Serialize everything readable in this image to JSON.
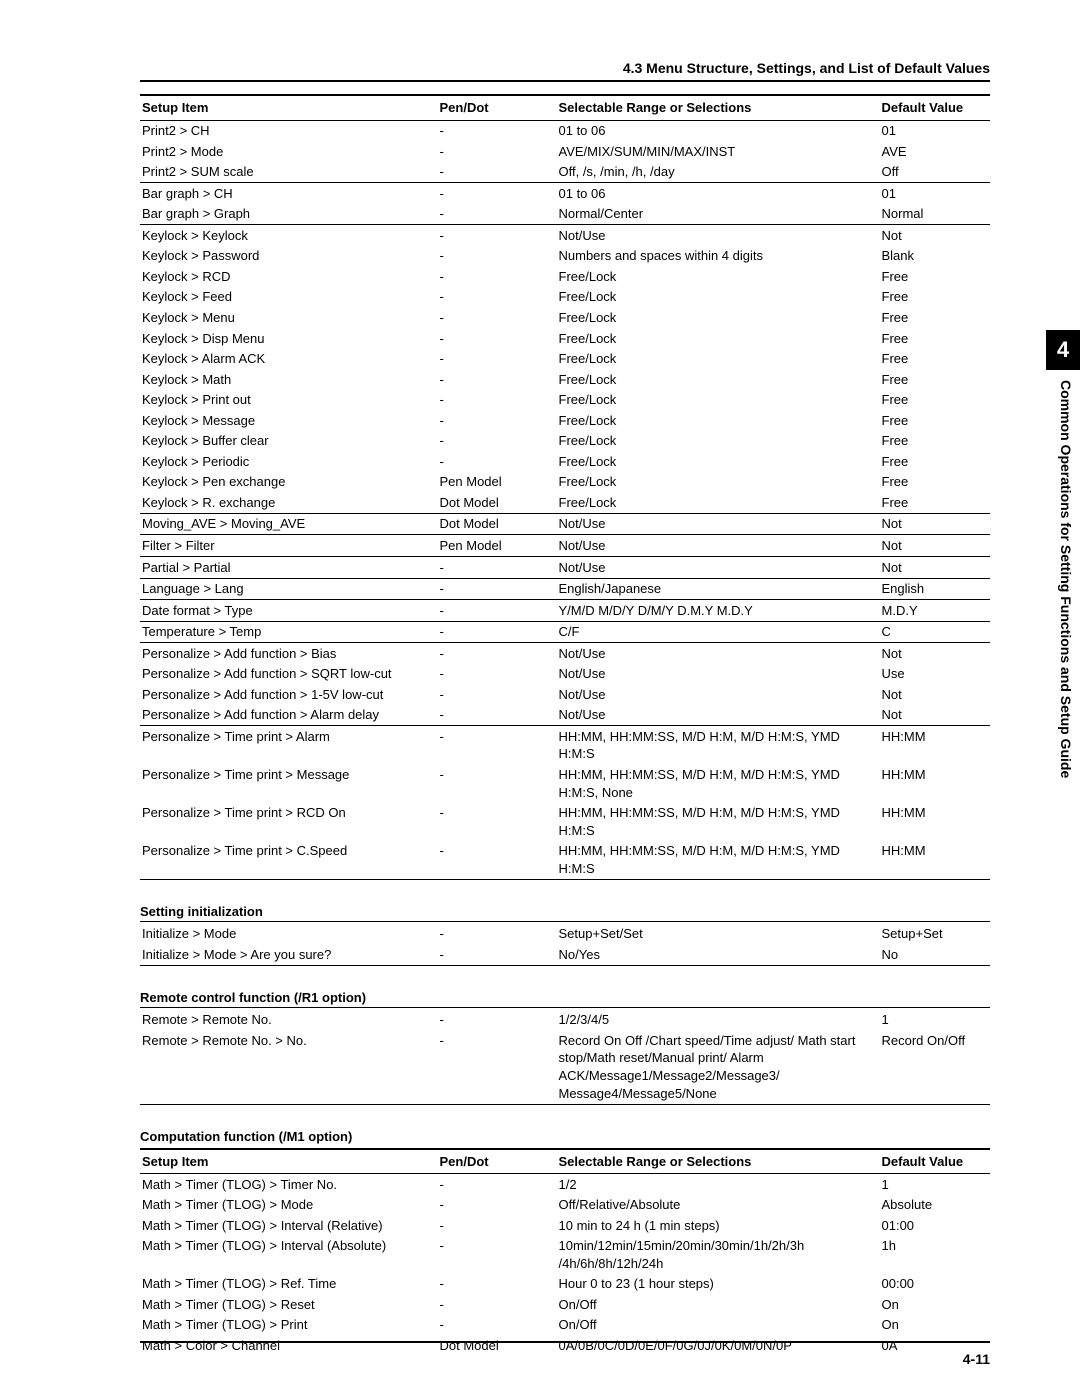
{
  "header_title": "4.3  Menu Structure, Settings, and List of Default Values",
  "chapter_tab": "4",
  "side_label": "Common Operations for Setting Functions and Setup Guide",
  "page_number": "4-11",
  "main_columns": {
    "setup": "Setup Item",
    "pendot": "Pen/Dot",
    "range": "Selectable Range or Selections",
    "default": "Default Value"
  },
  "groups": [
    {
      "rows": [
        {
          "s": "Print2 > CH",
          "p": "-",
          "r": "01 to 06",
          "d": "01"
        },
        {
          "s": "Print2 > Mode",
          "p": "-",
          "r": "AVE/MIX/SUM/MIN/MAX/INST",
          "d": "AVE"
        },
        {
          "s": "Print2 > SUM scale",
          "p": "-",
          "r": "Off, /s, /min, /h, /day",
          "d": "Off"
        }
      ]
    },
    {
      "rows": [
        {
          "s": "Bar graph > CH",
          "p": "-",
          "r": "01 to 06",
          "d": "01"
        },
        {
          "s": "Bar graph > Graph",
          "p": "-",
          "r": "Normal/Center",
          "d": "Normal"
        }
      ]
    },
    {
      "rows": [
        {
          "s": "Keylock > Keylock",
          "p": "-",
          "r": "Not/Use",
          "d": "Not"
        },
        {
          "s": "Keylock > Password",
          "p": "-",
          "r": "Numbers and spaces within 4 digits",
          "d": "Blank"
        },
        {
          "s": "Keylock > RCD",
          "p": "-",
          "r": "Free/Lock",
          "d": "Free"
        },
        {
          "s": "Keylock > Feed",
          "p": "-",
          "r": "Free/Lock",
          "d": "Free"
        },
        {
          "s": "Keylock > Menu",
          "p": "-",
          "r": "Free/Lock",
          "d": "Free"
        },
        {
          "s": "Keylock > Disp Menu",
          "p": "-",
          "r": "Free/Lock",
          "d": "Free"
        },
        {
          "s": "Keylock > Alarm ACK",
          "p": "-",
          "r": "Free/Lock",
          "d": "Free"
        },
        {
          "s": "Keylock > Math",
          "p": "-",
          "r": "Free/Lock",
          "d": "Free"
        },
        {
          "s": "Keylock > Print out",
          "p": "-",
          "r": "Free/Lock",
          "d": "Free"
        },
        {
          "s": "Keylock > Message",
          "p": "-",
          "r": "Free/Lock",
          "d": "Free"
        },
        {
          "s": "Keylock > Buffer clear",
          "p": "-",
          "r": "Free/Lock",
          "d": "Free"
        },
        {
          "s": "Keylock > Periodic",
          "p": "-",
          "r": "Free/Lock",
          "d": "Free"
        },
        {
          "s": "Keylock > Pen exchange",
          "p": "Pen Model",
          "r": "Free/Lock",
          "d": "Free"
        },
        {
          "s": "Keylock > R. exchange",
          "p": "Dot Model",
          "r": "Free/Lock",
          "d": "Free"
        }
      ]
    },
    {
      "rows": [
        {
          "s": "Moving_AVE > Moving_AVE",
          "p": "Dot Model",
          "r": "Not/Use",
          "d": "Not"
        }
      ]
    },
    {
      "rows": [
        {
          "s": "Filter > Filter",
          "p": "Pen Model",
          "r": "Not/Use",
          "d": "Not"
        }
      ]
    },
    {
      "rows": [
        {
          "s": "Partial > Partial",
          "p": "-",
          "r": "Not/Use",
          "d": "Not"
        }
      ]
    },
    {
      "rows": [
        {
          "s": "Language > Lang",
          "p": "-",
          "r": "English/Japanese",
          "d": "English"
        }
      ]
    },
    {
      "rows": [
        {
          "s": "Date format > Type",
          "p": "-",
          "r": "Y/M/D  M/D/Y  D/M/Y  D.M.Y  M.D.Y",
          "d": "M.D.Y"
        }
      ]
    },
    {
      "rows": [
        {
          "s": "Temperature > Temp",
          "p": "-",
          "r": "C/F",
          "d": "C"
        }
      ]
    },
    {
      "rows": [
        {
          "s": "Personalize > Add function > Bias",
          "p": "-",
          "r": "Not/Use",
          "d": "Not"
        },
        {
          "s": "Personalize > Add function > SQRT low-cut",
          "p": "-",
          "r": "Not/Use",
          "d": "Use"
        },
        {
          "s": "Personalize > Add function > 1-5V low-cut",
          "p": "-",
          "r": "Not/Use",
          "d": "Not"
        },
        {
          "s": "Personalize > Add function > Alarm delay",
          "p": "-",
          "r": "Not/Use",
          "d": "Not"
        }
      ]
    },
    {
      "rows": [
        {
          "s": "Personalize > Time print > Alarm",
          "p": "-",
          "r": "HH:MM, HH:MM:SS, M/D H:M, M/D H:M:S, YMD H:M:S",
          "d": "HH:MM"
        },
        {
          "s": "Personalize > Time print > Message",
          "p": "-",
          "r": "HH:MM, HH:MM:SS, M/D H:M, M/D H:M:S, YMD H:M:S, None",
          "d": "HH:MM"
        },
        {
          "s": "Personalize > Time print > RCD On",
          "p": "-",
          "r": "HH:MM, HH:MM:SS, M/D H:M, M/D H:M:S, YMD H:M:S",
          "d": "HH:MM"
        },
        {
          "s": "Personalize > Time print > C.Speed",
          "p": "-",
          "r": "HH:MM, HH:MM:SS, M/D H:M, M/D H:M:S, YMD H:M:S",
          "d": "HH:MM"
        }
      ]
    }
  ],
  "init_heading": "Setting initialization",
  "init_rows": [
    {
      "s": "Initialize > Mode",
      "p": "-",
      "r": "Setup+Set/Set",
      "d": "Setup+Set"
    },
    {
      "s": "Initialize > Mode > Are you sure?",
      "p": "-",
      "r": "No/Yes",
      "d": "No"
    }
  ],
  "remote_heading": "Remote control function (/R1 option)",
  "remote_rows": [
    {
      "s": "Remote > Remote No.",
      "p": "-",
      "r": "1/2/3/4/5",
      "d": "1"
    },
    {
      "s": "Remote > Remote No. > No.",
      "p": "-",
      "r": "Record On Off /Chart speed/Time adjust/ Math start stop/Math reset/Manual print/ Alarm ACK/Message1/Message2/Message3/ Message4/Message5/None",
      "d": "Record On/Off"
    }
  ],
  "comp_heading": "Computation function (/M1 option)",
  "comp_rows": [
    {
      "s": "Math > Timer (TLOG) > Timer No.",
      "p": "-",
      "r": "1/2",
      "d": "1"
    },
    {
      "s": "Math > Timer (TLOG) > Mode",
      "p": "-",
      "r": "Off/Relative/Absolute",
      "d": "Absolute"
    },
    {
      "s": "Math > Timer (TLOG) > Interval (Relative)",
      "p": "-",
      "r": "10 min to 24 h (1 min steps)",
      "d": "01:00"
    },
    {
      "s": "Math > Timer (TLOG) > Interval (Absolute)",
      "p": "-",
      "r": "10min/12min/15min/20min/30min/1h/2h/3h /4h/6h/8h/12h/24h",
      "d": "1h"
    },
    {
      "s": "Math > Timer (TLOG) > Ref. Time",
      "p": "-",
      "r": "Hour 0 to 23 (1 hour steps)",
      "d": "00:00"
    },
    {
      "s": "Math > Timer (TLOG) > Reset",
      "p": "-",
      "r": "On/Off",
      "d": "On"
    },
    {
      "s": "Math > Timer (TLOG) > Print",
      "p": "-",
      "r": "On/Off",
      "d": "On"
    },
    {
      "s": "Math > Color > Channel",
      "p": "Dot Model",
      "r": "0A/0B/0C/0D/0E/0F/0G/0J/0K/0M/0N/0P",
      "d": "0A"
    }
  ]
}
